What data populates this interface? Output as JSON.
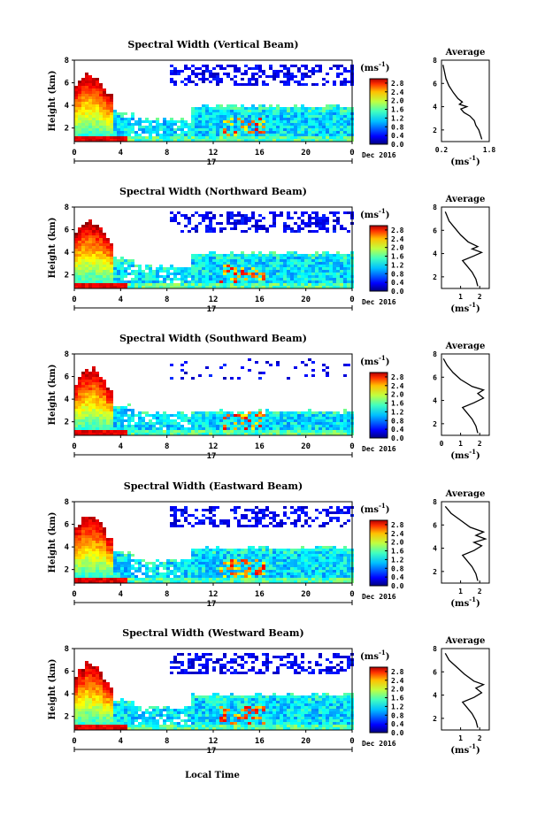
{
  "figure": {
    "xlabel": "Local Time",
    "date_label": "Dec 2016",
    "day_label": "17",
    "ylabel": "Height (km)",
    "unit_label": "(ms",
    "unit_sup": "-1",
    "unit_close": ")",
    "avg_title": "Average"
  },
  "chart_data": [
    {
      "type": "heatmap",
      "title": "Spectral Width (Vertical Beam)",
      "ylabel": "Height (km)",
      "x_ticks": [
        "0",
        "4",
        "8",
        "12",
        "16",
        "20",
        "0"
      ],
      "y_ticks": [
        "2",
        "4",
        "6",
        "8"
      ],
      "ylim": [
        0.8,
        8.0
      ],
      "colorbar_ticks": [
        "2.8",
        "2.4",
        "2.0",
        "1.6",
        "1.2",
        "0.8",
        "0.4",
        "0.0"
      ],
      "colorbar_range": [
        0.0,
        3.0
      ],
      "avg_profile": {
        "xticks": [
          "0.2",
          "1.8"
        ],
        "xlim": [
          0.2,
          1.8
        ],
        "ylim": [
          1,
          8
        ],
        "yticks": [
          "2",
          "4",
          "6",
          "8"
        ],
        "points": [
          [
            1.55,
            1.2
          ],
          [
            1.5,
            1.6
          ],
          [
            1.45,
            2.0
          ],
          [
            1.35,
            2.4
          ],
          [
            1.3,
            2.8
          ],
          [
            1.15,
            3.2
          ],
          [
            0.95,
            3.5
          ],
          [
            0.85,
            3.8
          ],
          [
            1.05,
            4.0
          ],
          [
            0.8,
            4.2
          ],
          [
            0.9,
            4.4
          ],
          [
            0.75,
            4.7
          ],
          [
            0.6,
            5.2
          ],
          [
            0.45,
            5.8
          ],
          [
            0.35,
            6.4
          ],
          [
            0.3,
            7.0
          ],
          [
            0.25,
            7.6
          ]
        ]
      }
    },
    {
      "type": "heatmap",
      "title": "Spectral Width (Northward Beam)",
      "ylabel": "Height (km)",
      "x_ticks": [
        "0",
        "4",
        "8",
        "12",
        "16",
        "20",
        "0"
      ],
      "y_ticks": [
        "2",
        "4",
        "6",
        "8"
      ],
      "ylim": [
        0.8,
        8.0
      ],
      "colorbar_ticks": [
        "2.8",
        "2.4",
        "2.0",
        "1.6",
        "1.2",
        "0.8",
        "0.4",
        "0.0"
      ],
      "colorbar_range": [
        0.0,
        3.0
      ],
      "avg_profile": {
        "xticks": [
          "1",
          "2"
        ],
        "xlim": [
          0,
          2.5
        ],
        "ylim": [
          1,
          8
        ],
        "yticks": [
          "2",
          "4",
          "6",
          "8"
        ],
        "points": [
          [
            1.9,
            1.2
          ],
          [
            1.8,
            1.8
          ],
          [
            1.6,
            2.4
          ],
          [
            1.3,
            3.0
          ],
          [
            1.1,
            3.4
          ],
          [
            1.7,
            3.8
          ],
          [
            2.1,
            4.1
          ],
          [
            1.6,
            4.4
          ],
          [
            1.9,
            4.6
          ],
          [
            1.4,
            5.0
          ],
          [
            1.0,
            5.6
          ],
          [
            0.7,
            6.2
          ],
          [
            0.4,
            6.8
          ],
          [
            0.2,
            7.6
          ]
        ]
      }
    },
    {
      "type": "heatmap",
      "title": "Spectral Width (Southward Beam)",
      "ylabel": "Height (km)",
      "x_ticks": [
        "0",
        "4",
        "8",
        "12",
        "16",
        "20",
        "0"
      ],
      "y_ticks": [
        "2",
        "4",
        "6",
        "8"
      ],
      "ylim": [
        0.8,
        8.0
      ],
      "colorbar_ticks": [
        "2.8",
        "2.4",
        "2.0",
        "1.6",
        "1.2",
        "0.8",
        "0.4",
        "0.0"
      ],
      "colorbar_range": [
        0.0,
        3.0
      ],
      "avg_profile": {
        "xticks": [
          "0",
          "1",
          "2"
        ],
        "xlim": [
          0,
          2.5
        ],
        "ylim": [
          1,
          8
        ],
        "yticks": [
          "2",
          "4",
          "6",
          "8"
        ],
        "points": [
          [
            1.9,
            1.2
          ],
          [
            1.8,
            1.8
          ],
          [
            1.6,
            2.4
          ],
          [
            1.3,
            3.0
          ],
          [
            1.1,
            3.4
          ],
          [
            1.7,
            3.8
          ],
          [
            2.2,
            4.2
          ],
          [
            1.9,
            4.6
          ],
          [
            2.2,
            4.9
          ],
          [
            1.6,
            5.2
          ],
          [
            1.0,
            5.8
          ],
          [
            0.6,
            6.4
          ],
          [
            0.3,
            7.0
          ],
          [
            0.1,
            7.6
          ]
        ]
      }
    },
    {
      "type": "heatmap",
      "title": "Spectral Width (Eastward Beam)",
      "ylabel": "Height (km)",
      "x_ticks": [
        "0",
        "4",
        "8",
        "12",
        "16",
        "20",
        "0"
      ],
      "y_ticks": [
        "2",
        "4",
        "6",
        "8"
      ],
      "ylim": [
        0.8,
        8.0
      ],
      "colorbar_ticks": [
        "2.8",
        "2.4",
        "2.0",
        "1.6",
        "1.2",
        "0.8",
        "0.4",
        "0.0"
      ],
      "colorbar_range": [
        0.0,
        3.0
      ],
      "avg_profile": {
        "xticks": [
          "1",
          "2"
        ],
        "xlim": [
          0,
          2.5
        ],
        "ylim": [
          1,
          8
        ],
        "yticks": [
          "2",
          "4",
          "6",
          "8"
        ],
        "points": [
          [
            1.9,
            1.2
          ],
          [
            1.8,
            1.8
          ],
          [
            1.6,
            2.4
          ],
          [
            1.3,
            3.0
          ],
          [
            1.1,
            3.4
          ],
          [
            1.7,
            3.8
          ],
          [
            2.1,
            4.2
          ],
          [
            1.7,
            4.5
          ],
          [
            2.3,
            4.8
          ],
          [
            1.8,
            5.1
          ],
          [
            2.2,
            5.4
          ],
          [
            1.5,
            5.8
          ],
          [
            1.0,
            6.4
          ],
          [
            0.5,
            7.0
          ],
          [
            0.2,
            7.6
          ]
        ]
      }
    },
    {
      "type": "heatmap",
      "title": "Spectral Width (Westward Beam)",
      "ylabel": "Height (km)",
      "x_ticks": [
        "0",
        "4",
        "8",
        "12",
        "16",
        "20",
        "0"
      ],
      "y_ticks": [
        "2",
        "4",
        "6",
        "8"
      ],
      "ylim": [
        0.8,
        8.0
      ],
      "colorbar_ticks": [
        "2.8",
        "2.4",
        "2.0",
        "1.6",
        "1.2",
        "0.8",
        "0.4",
        "0.0"
      ],
      "colorbar_range": [
        0.0,
        3.0
      ],
      "avg_profile": {
        "xticks": [
          "1",
          "2"
        ],
        "xlim": [
          0,
          2.5
        ],
        "ylim": [
          1,
          8
        ],
        "yticks": [
          "2",
          "4",
          "6",
          "8"
        ],
        "points": [
          [
            1.9,
            1.2
          ],
          [
            1.8,
            1.8
          ],
          [
            1.6,
            2.4
          ],
          [
            1.3,
            3.0
          ],
          [
            1.1,
            3.4
          ],
          [
            1.7,
            3.8
          ],
          [
            2.1,
            4.2
          ],
          [
            1.8,
            4.6
          ],
          [
            2.2,
            4.9
          ],
          [
            1.7,
            5.2
          ],
          [
            1.2,
            5.8
          ],
          [
            0.8,
            6.4
          ],
          [
            0.4,
            7.0
          ],
          [
            0.2,
            7.6
          ]
        ]
      }
    }
  ]
}
